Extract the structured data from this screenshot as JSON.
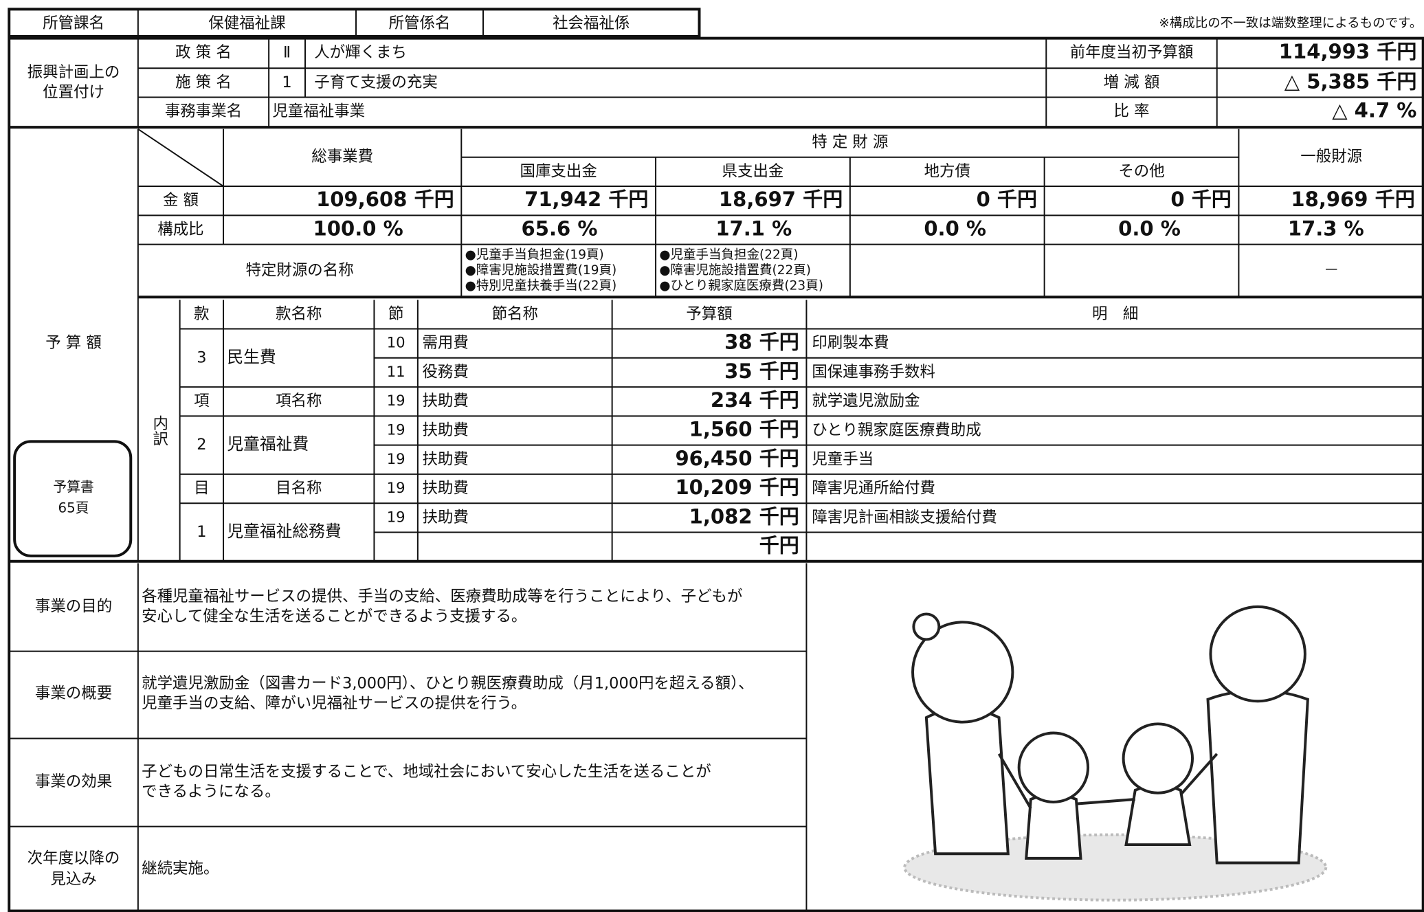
{
  "header": {
    "dept_label": "所管課名",
    "dept": "保健福祉課",
    "section_label": "所管係名",
    "section": "社会福祉係",
    "note": "※構成比の不一致は端数整理によるものです。"
  },
  "position": {
    "label_lines": [
      "振興計画上の",
      "位置付け"
    ],
    "policy_label": "政 策 名",
    "policy_no": "Ⅱ",
    "policy": "人が輝くまち",
    "measure_label": "施 策 名",
    "measure_no": "1",
    "measure": "子育て支援の充実",
    "project_label": "事務事業名",
    "project": "児童福祉事業"
  },
  "summary": {
    "prev_label": "前年度当初予算額",
    "prev": "114,993 千円",
    "diff_label": "増 減 額",
    "diff": "△ 5,385 千円",
    "ratio_label": "比 率",
    "ratio": "△ 4.7 %"
  },
  "budget": {
    "label": "予 算 額",
    "book_lines": [
      "予算書",
      "65頁"
    ],
    "total_label": "総事業費",
    "specific_label": "特 定 財 源",
    "general_label": "一般財源",
    "sources": [
      "国庫支出金",
      "県支出金",
      "地方債",
      "その他"
    ],
    "amount_label": "金 額",
    "ratio_label": "構成比",
    "amounts": [
      "109,608 千円",
      "71,942 千円",
      "18,697 千円",
      "0 千円",
      "0 千円",
      "18,969 千円"
    ],
    "ratios": [
      "100.0 %",
      "65.6 %",
      "17.1 %",
      "0.0 %",
      "0.0 %",
      "17.3 %"
    ],
    "names_label": "特定財源の名称",
    "national_names": [
      "●児童手当負担金(19頁)",
      "●障害児施設措置費(19頁)",
      "●特別児童扶養手当(22頁)"
    ],
    "prefecture_names": [
      "●児童手当負担金(22頁)",
      "●障害児施設措置費(22頁)",
      "●ひとり親家庭医療費(23頁)"
    ],
    "general_names": "－"
  },
  "breakdown": {
    "label": "内訳",
    "kan_header": "款",
    "kan_name_header": "款名称",
    "setsu_header": "節",
    "setsu_name_header": "節名称",
    "amount_header": "予算額",
    "detail_header": "明　細",
    "kou_header": "項",
    "kou_name_header": "項名称",
    "moku_header": "目",
    "moku_name_header": "目名称",
    "kan": {
      "no": "3",
      "name": "民生費"
    },
    "kou": {
      "no": "2",
      "name": "児童福祉費"
    },
    "moku": {
      "no": "1",
      "name": "児童福祉総務費"
    },
    "rows": [
      {
        "setsu": "10",
        "name": "需用費",
        "amount": "38 千円",
        "detail": "印刷製本費"
      },
      {
        "setsu": "11",
        "name": "役務費",
        "amount": "35 千円",
        "detail": "国保連事務手数料"
      },
      {
        "setsu": "19",
        "name": "扶助費",
        "amount": "234 千円",
        "detail": "就学遺児激励金"
      },
      {
        "setsu": "19",
        "name": "扶助費",
        "amount": "1,560 千円",
        "detail": "ひとり親家庭医療費助成"
      },
      {
        "setsu": "19",
        "name": "扶助費",
        "amount": "96,450 千円",
        "detail": "児童手当"
      },
      {
        "setsu": "19",
        "name": "扶助費",
        "amount": "10,209 千円",
        "detail": "障害児通所給付費"
      },
      {
        "setsu": "19",
        "name": "扶助費",
        "amount": "1,082 千円",
        "detail": "障害児計画相談支援給付費"
      },
      {
        "amount": "千円"
      }
    ]
  },
  "description": [
    {
      "label_lines": [
        "事業の目的"
      ],
      "text_lines": [
        "各種児童福祉サービスの提供、手当の支給、医療費助成等を行うことにより、子どもが",
        "安心して健全な生活を送ることができるよう支援する。"
      ]
    },
    {
      "label_lines": [
        "事業の概要"
      ],
      "text_lines": [
        "就学遺児激励金（図書カード3,000円）、ひとり親医療費助成（月1,000円を超える額）、",
        "児童手当の支給、障がい児福祉サービスの提供を行う。"
      ]
    },
    {
      "label_lines": [
        "事業の効果"
      ],
      "text_lines": [
        "子どもの日常生活を支援することで、地域社会において安心した生活を送ることが",
        "できるようになる。"
      ]
    },
    {
      "label_lines": [
        "次年度以降の",
        "見込み"
      ],
      "text_lines": [
        "継続実施。"
      ]
    }
  ]
}
